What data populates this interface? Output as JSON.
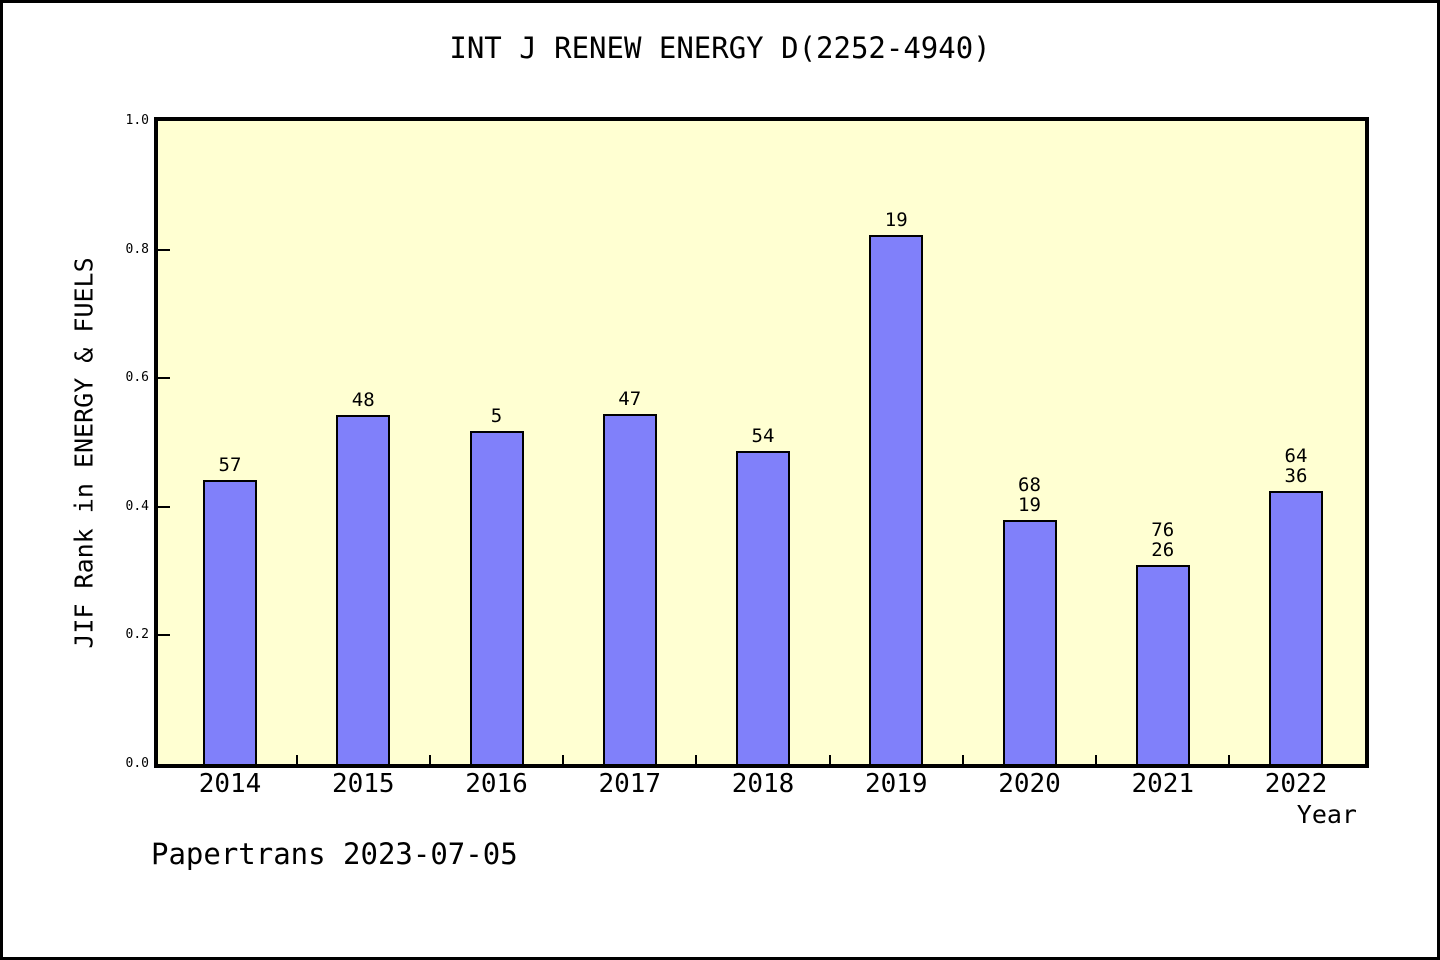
{
  "chart_data": {
    "type": "bar",
    "title": "INT J RENEW ENERGY D(2252-4940)",
    "xlabel": "Year",
    "ylabel": "JIF Rank in ENERGY & FUELS",
    "categories": [
      "2014",
      "2015",
      "2016",
      "2017",
      "2018",
      "2019",
      "2020",
      "2021",
      "2022"
    ],
    "values": [
      0.441,
      0.543,
      0.518,
      0.545,
      0.487,
      0.823,
      0.38,
      0.31,
      0.424
    ],
    "bar_labels": [
      [
        "57"
      ],
      [
        "48"
      ],
      [
        "5"
      ],
      [
        "47"
      ],
      [
        "54"
      ],
      [
        "19"
      ],
      [
        "68",
        "19"
      ],
      [
        "76",
        "26"
      ],
      [
        "64",
        "36"
      ]
    ],
    "ylim": [
      0.0,
      1.0
    ],
    "ytick_values": [
      0.0,
      0.2,
      0.4,
      0.6,
      0.8,
      1.0
    ],
    "ytick_labels": [
      "0.0",
      "0.2",
      "0.4",
      "0.6",
      "0.8",
      "1.0"
    ],
    "grid": "off",
    "legend": "none",
    "colors": {
      "bar_fill": "#8080FA",
      "bar_border": "#000000",
      "plot_background": "#FFFFD2",
      "page_background": "#FFFFFF",
      "axis": "#000000",
      "text": "#000000"
    }
  },
  "footer": {
    "text": "Papertrans 2023-07-05"
  }
}
